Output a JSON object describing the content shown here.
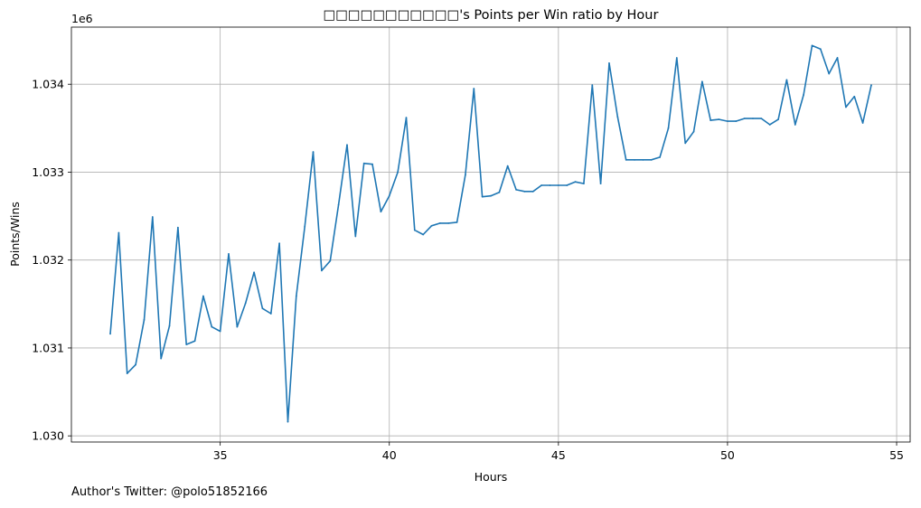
{
  "chart_data": {
    "type": "line",
    "title": "□□□□□□□□□□□'s Points per Win ratio by Hour",
    "xlabel": "Hours",
    "ylabel": "Points/Wins",
    "y_offset_label": "1e6",
    "xlim": [
      30.6,
      55.4
    ],
    "ylim": [
      1029.93,
      1034.65
    ],
    "x_ticks": [
      35,
      40,
      45,
      50,
      55
    ],
    "y_ticks": [
      1030,
      1031,
      1032,
      1033,
      1034
    ],
    "y_tick_labels": [
      "1.030",
      "1.031",
      "1.032",
      "1.033",
      "1.034"
    ],
    "grid": true,
    "line_color": "#1f77b4",
    "series": [
      {
        "x": [
          31.75,
          32.0,
          32.25,
          32.5,
          32.75,
          33.0,
          33.25,
          33.5,
          33.75,
          34.0,
          34.25,
          34.5,
          34.75,
          35.0,
          35.25,
          35.5,
          35.75,
          36.0,
          36.25,
          36.5,
          36.75,
          37.0,
          37.25,
          37.5,
          37.75,
          38.0,
          38.25,
          38.5,
          38.75,
          39.0,
          39.25,
          39.5,
          39.75,
          40.0,
          40.25,
          40.5,
          40.75,
          41.0,
          41.25,
          41.5,
          41.75,
          42.0,
          42.25,
          42.5,
          42.75,
          43.0,
          43.25,
          43.5,
          43.75,
          44.0,
          44.25,
          44.5,
          44.75,
          45.0,
          45.25,
          45.5,
          45.75,
          46.0,
          46.25,
          46.5,
          46.75,
          47.0,
          47.25,
          47.5,
          47.75,
          48.0,
          48.25,
          48.5,
          48.75,
          49.0,
          49.25,
          49.5,
          49.75,
          50.0,
          50.25,
          50.5,
          50.75,
          51.0,
          51.25,
          51.5,
          51.75,
          52.0,
          52.25,
          52.5,
          52.75,
          53.0,
          53.25,
          53.5,
          53.75,
          54.0,
          54.25
        ],
        "y": [
          1031.16,
          1032.31,
          1030.71,
          1030.81,
          1031.32,
          1032.49,
          1030.88,
          1031.25,
          1032.37,
          1031.04,
          1031.08,
          1031.59,
          1031.24,
          1031.19,
          1032.07,
          1031.24,
          1031.51,
          1031.86,
          1031.45,
          1031.39,
          1032.19,
          1030.16,
          1031.59,
          1032.38,
          1033.23,
          1031.88,
          1031.99,
          1032.63,
          1033.31,
          1032.27,
          1033.1,
          1033.09,
          1032.55,
          1032.73,
          1033.0,
          1033.62,
          1032.34,
          1032.29,
          1032.39,
          1032.42,
          1032.42,
          1032.43,
          1032.97,
          1033.95,
          1032.72,
          1032.73,
          1032.77,
          1033.07,
          1032.8,
          1032.78,
          1032.78,
          1032.85,
          1032.85,
          1032.85,
          1032.85,
          1032.89,
          1032.87,
          1033.99,
          1032.87,
          1034.24,
          1033.63,
          1033.14,
          1033.14,
          1033.14,
          1033.14,
          1033.17,
          1033.5,
          1034.3,
          1033.33,
          1033.46,
          1034.03,
          1033.59,
          1033.6,
          1033.58,
          1033.58,
          1033.61,
          1033.61,
          1033.61,
          1033.54,
          1033.6,
          1034.05,
          1033.54,
          1033.88,
          1034.44,
          1034.4,
          1034.12,
          1034.3,
          1033.74,
          1033.86,
          1033.56,
          1033.99
        ]
      }
    ]
  },
  "footer": "Author's Twitter: @polo51852166"
}
